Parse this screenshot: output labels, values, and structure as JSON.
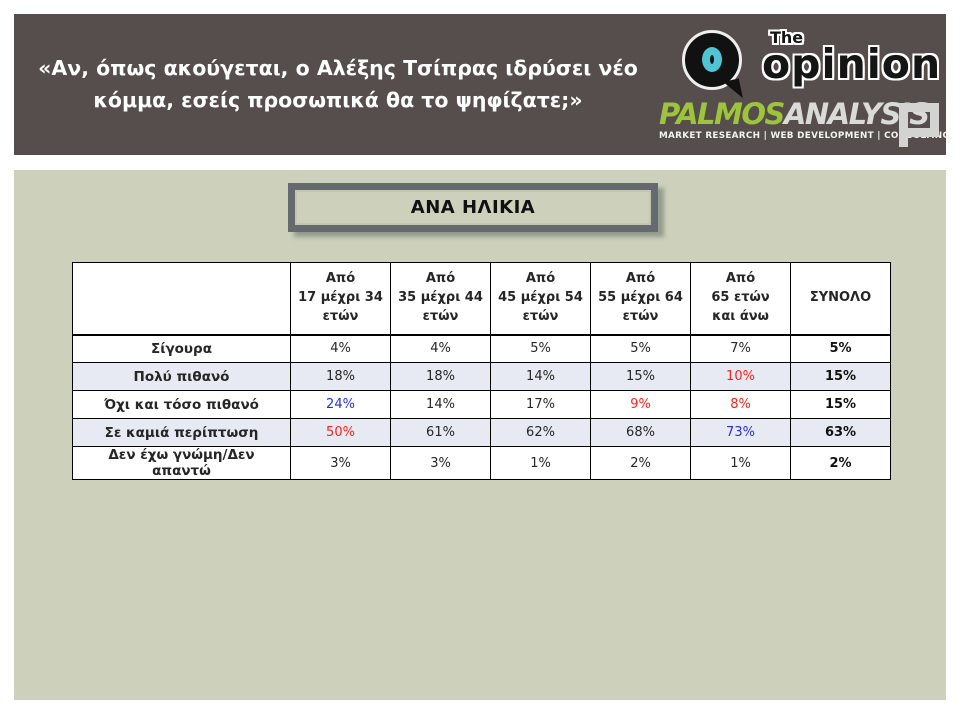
{
  "colors": {
    "header_bg": "#564e4c",
    "panel_bg": "#cdd1bb",
    "alt_row_bg": "#e8eaf3",
    "highlight_red": "#f3241d",
    "highlight_blue": "#2d2dd8",
    "palmos_green": "#9dc43a",
    "opinion_cyan": "#4fc4d5",
    "box_frame": "#646a6f"
  },
  "header": {
    "question": "«Αν, όπως ακούγεται, ο Αλέξης Τσίπρας ιδρύσει νέο κόμμα, εσείς προσωπικά θα το ψηφίζατε;»",
    "opinion_logo": {
      "the": "The",
      "name": "opinion"
    },
    "palmos_logo": {
      "name_green": "PALMOS",
      "name_white": "ANALYSIS",
      "tagline": "MARKET RESEARCH | WEB DEVELOPMENT | CONSULTING"
    }
  },
  "section_title": "ΑΝΑ ΗΛΙΚΙΑ",
  "table": {
    "header_cells": [
      {
        "lines": [
          ""
        ]
      },
      {
        "lines": [
          "Από",
          "17 μέχρι 34",
          "ετών"
        ]
      },
      {
        "lines": [
          "Από",
          "35 μέχρι 44",
          "ετών"
        ]
      },
      {
        "lines": [
          "Από",
          "45 μέχρι 54",
          "ετών"
        ]
      },
      {
        "lines": [
          "Από",
          "55 μέχρι 64",
          "ετών"
        ]
      },
      {
        "lines": [
          "Από",
          "65 ετών",
          "και άνω"
        ]
      },
      {
        "lines": [
          "ΣΥΝΟΛΟ"
        ]
      }
    ],
    "rows": [
      {
        "label": "Σίγουρα",
        "cells": [
          {
            "v": "4%"
          },
          {
            "v": "4%"
          },
          {
            "v": "5%"
          },
          {
            "v": "5%"
          },
          {
            "v": "7%"
          },
          {
            "v": "5%"
          }
        ]
      },
      {
        "label": "Πολύ πιθανό",
        "cells": [
          {
            "v": "18%"
          },
          {
            "v": "18%"
          },
          {
            "v": "14%"
          },
          {
            "v": "15%"
          },
          {
            "v": "10%",
            "c": "red"
          },
          {
            "v": "15%"
          }
        ]
      },
      {
        "label": "Όχι και τόσο πιθανό",
        "cells": [
          {
            "v": "24%",
            "c": "blue"
          },
          {
            "v": "14%"
          },
          {
            "v": "17%"
          },
          {
            "v": "9%",
            "c": "red"
          },
          {
            "v": "8%",
            "c": "red"
          },
          {
            "v": "15%"
          }
        ]
      },
      {
        "label": "Σε καμιά περίπτωση",
        "cells": [
          {
            "v": "50%",
            "c": "red"
          },
          {
            "v": "61%"
          },
          {
            "v": "62%"
          },
          {
            "v": "68%"
          },
          {
            "v": "73%",
            "c": "blue"
          },
          {
            "v": "63%"
          }
        ]
      },
      {
        "label": "Δεν έχω γνώμη/Δεν απαντώ",
        "cells": [
          {
            "v": "3%"
          },
          {
            "v": "3%"
          },
          {
            "v": "1%"
          },
          {
            "v": "2%"
          },
          {
            "v": "1%"
          },
          {
            "v": "2%"
          }
        ]
      }
    ]
  },
  "chart_data": {
    "type": "table",
    "title": "ΑΝΑ ΗΛΙΚΙΑ",
    "question": "«Αν, όπως ακούγεται, ο Αλέξης Τσίπρας ιδρύσει νέο κόμμα, εσείς προσωπικά θα το ψηφίζατε;»",
    "columns": [
      "Από 17 μέχρι 34 ετών",
      "Από 35 μέχρι 44 ετών",
      "Από 45 μέχρι 54 ετών",
      "Από 55 μέχρι 64 ετών",
      "Από 65 ετών και άνω",
      "ΣΥΝΟΛΟ"
    ],
    "rows": [
      {
        "label": "Σίγουρα",
        "values_pct": [
          4,
          4,
          5,
          5,
          7,
          5
        ]
      },
      {
        "label": "Πολύ πιθανό",
        "values_pct": [
          18,
          18,
          14,
          15,
          10,
          15
        ]
      },
      {
        "label": "Όχι και τόσο πιθανό",
        "values_pct": [
          24,
          14,
          17,
          9,
          8,
          15
        ]
      },
      {
        "label": "Σε καμιά περίπτωση",
        "values_pct": [
          50,
          61,
          62,
          68,
          73,
          63
        ]
      },
      {
        "label": "Δεν έχω γνώμη/Δεν απαντώ",
        "values_pct": [
          3,
          3,
          1,
          2,
          1,
          2
        ]
      }
    ],
    "highlights": [
      {
        "row": "Πολύ πιθανό",
        "column": "Από 65 ετών και άνω",
        "color": "red"
      },
      {
        "row": "Όχι και τόσο πιθανό",
        "column": "Από 17 μέχρι 34 ετών",
        "color": "blue"
      },
      {
        "row": "Όχι και τόσο πιθανό",
        "column": "Από 55 μέχρι 64 ετών",
        "color": "red"
      },
      {
        "row": "Όχι και τόσο πιθανό",
        "column": "Από 65 ετών και άνω",
        "color": "red"
      },
      {
        "row": "Σε καμιά περίπτωση",
        "column": "Από 17 μέχρι 34 ετών",
        "color": "red"
      },
      {
        "row": "Σε καμιά περίπτωση",
        "column": "Από 65 ετών και άνω",
        "color": "blue"
      }
    ]
  }
}
